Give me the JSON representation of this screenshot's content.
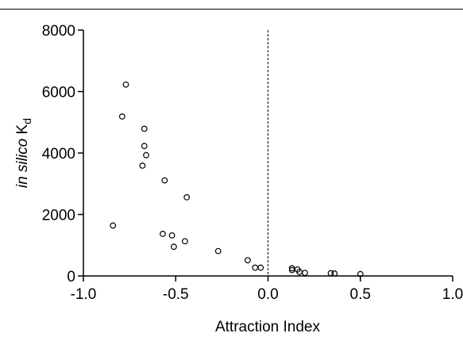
{
  "chart_data": {
    "type": "scatter",
    "xlabel": "Attraction Index",
    "ylabel_prefix": "in silico",
    "ylabel_main": "K",
    "ylabel_sub": "d",
    "xlim": [
      -1.0,
      1.0
    ],
    "ylim": [
      0,
      8000
    ],
    "xticks": [
      -1.0,
      -0.5,
      0.0,
      0.5,
      1.0
    ],
    "xtick_labels": [
      "-1.0",
      "-0.5",
      "0.0",
      "0.5",
      "1.0"
    ],
    "yticks": [
      0,
      2000,
      4000,
      6000,
      8000
    ],
    "ytick_labels": [
      "0",
      "2000",
      "4000",
      "6000",
      "8000"
    ],
    "reference_line_x": 0.0,
    "grid": false,
    "marker": "open-circle",
    "points": [
      {
        "x": -0.77,
        "y": 6230
      },
      {
        "x": -0.79,
        "y": 5190
      },
      {
        "x": -0.67,
        "y": 4790
      },
      {
        "x": -0.67,
        "y": 4230
      },
      {
        "x": -0.66,
        "y": 3930
      },
      {
        "x": -0.68,
        "y": 3590
      },
      {
        "x": -0.56,
        "y": 3110
      },
      {
        "x": -0.44,
        "y": 2560
      },
      {
        "x": -0.84,
        "y": 1640
      },
      {
        "x": -0.57,
        "y": 1370
      },
      {
        "x": -0.52,
        "y": 1320
      },
      {
        "x": -0.45,
        "y": 1130
      },
      {
        "x": -0.51,
        "y": 950
      },
      {
        "x": -0.27,
        "y": 810
      },
      {
        "x": -0.11,
        "y": 510
      },
      {
        "x": -0.07,
        "y": 270
      },
      {
        "x": -0.04,
        "y": 270
      },
      {
        "x": 0.13,
        "y": 250
      },
      {
        "x": 0.13,
        "y": 190
      },
      {
        "x": 0.16,
        "y": 210
      },
      {
        "x": 0.17,
        "y": 130
      },
      {
        "x": 0.2,
        "y": 100
      },
      {
        "x": 0.34,
        "y": 90
      },
      {
        "x": 0.36,
        "y": 80
      },
      {
        "x": 0.5,
        "y": 60
      }
    ]
  }
}
